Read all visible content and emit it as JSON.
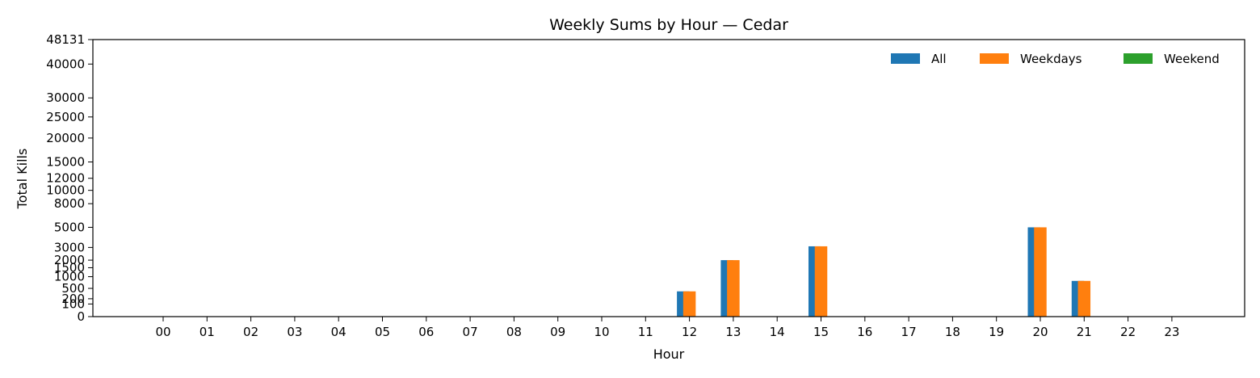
{
  "chart_data": {
    "type": "bar",
    "title": "Weekly Sums by Hour — Cedar",
    "xlabel": "Hour",
    "ylabel": "Total Kills",
    "categories": [
      "00",
      "01",
      "02",
      "03",
      "04",
      "05",
      "06",
      "07",
      "08",
      "09",
      "10",
      "11",
      "12",
      "13",
      "14",
      "15",
      "16",
      "17",
      "18",
      "19",
      "20",
      "21",
      "22",
      "23"
    ],
    "series": [
      {
        "name": "All",
        "color": "#1f77b4",
        "values": [
          0,
          0,
          0,
          0,
          0,
          0,
          0,
          0,
          0,
          0,
          0,
          0,
          400,
          2000,
          0,
          3100,
          0,
          0,
          0,
          0,
          5000,
          800,
          0,
          0
        ]
      },
      {
        "name": "Weekdays",
        "color": "#ff7f0e",
        "values": [
          0,
          0,
          0,
          0,
          0,
          0,
          0,
          0,
          0,
          0,
          0,
          0,
          400,
          2000,
          0,
          3100,
          0,
          0,
          0,
          0,
          5000,
          800,
          0,
          0
        ]
      },
      {
        "name": "Weekend",
        "color": "#2ca02c",
        "values": [
          0,
          0,
          0,
          0,
          0,
          0,
          0,
          0,
          0,
          0,
          0,
          0,
          0,
          0,
          0,
          0,
          0,
          0,
          0,
          0,
          0,
          0,
          0,
          0
        ]
      }
    ],
    "yscale": "sqrt",
    "ylim": [
      0,
      48131
    ],
    "yticks": [
      0,
      100,
      200,
      500,
      1000,
      1500,
      2000,
      3000,
      5000,
      8000,
      10000,
      12000,
      15000,
      20000,
      25000,
      30000,
      40000,
      48131
    ],
    "ytick_labels": [
      "0",
      "100",
      "200",
      "500",
      "1000",
      "1500",
      "2000",
      "3000",
      "5000",
      "8000",
      "10000",
      "12000",
      "15000",
      "20000",
      "25000",
      "30000",
      "40000",
      "48131"
    ],
    "grid": false,
    "legend_position": "top-right"
  }
}
